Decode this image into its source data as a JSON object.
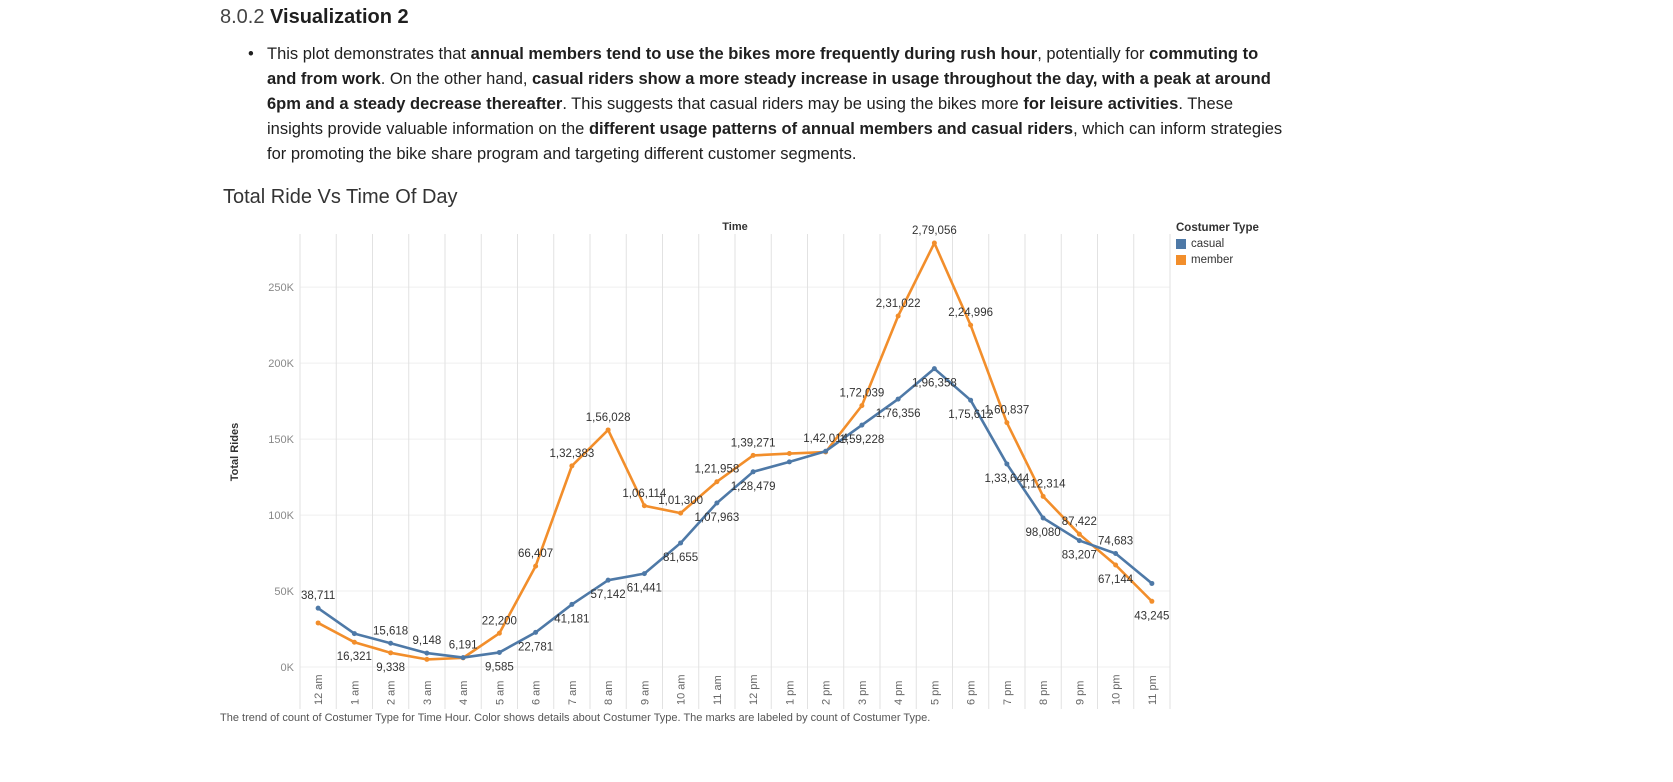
{
  "section": {
    "number": "8.0.2",
    "title": "Visualization 2"
  },
  "bullet": {
    "marker": "•",
    "segments": [
      {
        "text": "This plot demonstrates that ",
        "bold": false
      },
      {
        "text": "annual members tend to use the bikes more frequently during rush hour",
        "bold": true
      },
      {
        "text": ", potentially for ",
        "bold": false
      },
      {
        "text": "commuting to and from work",
        "bold": true
      },
      {
        "text": ". On the other hand, ",
        "bold": false
      },
      {
        "text": "casual riders show a more steady increase in usage throughout the day, with a peak at around 6pm and a steady decrease thereafter",
        "bold": true
      },
      {
        "text": ". This suggests that casual riders may be using the bikes more ",
        "bold": false
      },
      {
        "text": "for leisure activities",
        "bold": true
      },
      {
        "text": ". These insights provide valuable information on the ",
        "bold": false
      },
      {
        "text": "different usage patterns of annual members and casual riders",
        "bold": true
      },
      {
        "text": ", which can inform strategies for promoting the bike share program and targeting different customer segments.",
        "bold": false
      }
    ]
  },
  "chart_title": "Total Ride Vs Time Of Day",
  "caption": "The trend of count of Costumer Type for Time Hour.  Color shows details about Costumer Type.  The marks are labeled by count of Costumer Type.",
  "legend": {
    "title": "Costumer Type",
    "items": [
      {
        "label": "casual",
        "color": "#4e79a7"
      },
      {
        "label": "member",
        "color": "#f28e2b"
      }
    ]
  },
  "chart_data": {
    "type": "line",
    "title": "Total Ride Vs Time Of Day",
    "xlabel": "Time",
    "ylabel": "Total Rides",
    "categories": [
      "12 am",
      "1 am",
      "2 am",
      "3 am",
      "4 am",
      "5 am",
      "6 am",
      "7 am",
      "8 am",
      "9 am",
      "10 am",
      "11 am",
      "12 pm",
      "1 pm",
      "2 pm",
      "3 pm",
      "4 pm",
      "5 pm",
      "6 pm",
      "7 pm",
      "8 pm",
      "9 pm",
      "10 pm",
      "11 pm"
    ],
    "ylim": [
      0,
      285000
    ],
    "yticks": [
      0,
      50000,
      100000,
      150000,
      200000,
      250000
    ],
    "ytick_labels": [
      "0K",
      "50K",
      "100K",
      "150K",
      "200K",
      "250K"
    ],
    "grid": true,
    "legend_position": "top-right",
    "series": [
      {
        "name": "casual",
        "color": "#4e79a7",
        "values": [
          38711,
          22000,
          15618,
          9148,
          6191,
          9585,
          22781,
          41181,
          57142,
          61441,
          81655,
          107963,
          128479,
          135000,
          142014,
          159228,
          176356,
          196358,
          175612,
          133644,
          98080,
          83207,
          74683,
          55000
        ],
        "labels": [
          "38,711",
          null,
          "15,618",
          "9,148",
          "6,191",
          "9,585",
          "22,781",
          "41,181",
          "57,142",
          "61,441",
          "81,655",
          "1,07,963",
          "1,28,479",
          null,
          "1,42,014",
          "1,59,228",
          "1,76,356",
          "1,96,358",
          "1,75,612",
          "1,33,644",
          "98,080",
          "83,207",
          "74,683",
          null
        ]
      },
      {
        "name": "member",
        "color": "#f28e2b",
        "values": [
          29000,
          16321,
          9338,
          5000,
          6000,
          22200,
          66407,
          132383,
          156028,
          106114,
          101300,
          121958,
          139271,
          140500,
          141500,
          172039,
          231022,
          279056,
          224996,
          160837,
          112314,
          87422,
          67144,
          43245
        ],
        "labels": [
          null,
          "16,321",
          "9,338",
          null,
          null,
          "22,200",
          "66,407",
          "1,32,383",
          "1,56,028",
          "1,06,114",
          "1,01,300",
          "1,21,958",
          "1,39,271",
          null,
          null,
          "1,72,039",
          "2,31,022",
          "2,79,056",
          "2,24,996",
          "1,60,837",
          "1,12,314",
          "87,422",
          "67,144",
          "43,245"
        ]
      }
    ]
  }
}
